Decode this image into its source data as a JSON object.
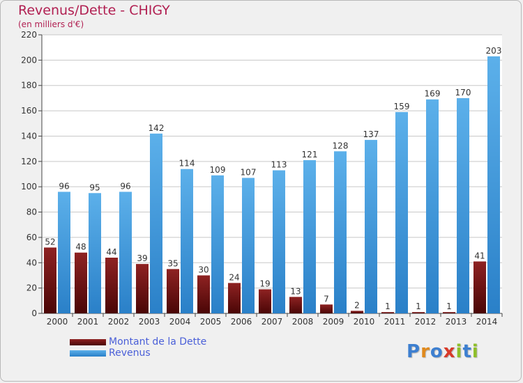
{
  "title": "Revenus/Dette - CHIGY",
  "subtitle": "(en milliers d'€)",
  "logo": "Proxiti",
  "colors": {
    "dette": "#7a1414",
    "revenus": "#3d9ae0",
    "title": "#b12052",
    "legend_text": "#4a5fd8"
  },
  "legend": [
    {
      "label": "Montant de la Dette",
      "color": "#7a1414"
    },
    {
      "label": "Revenus",
      "color": "#3d9ae0"
    }
  ],
  "chart_data": {
    "type": "bar",
    "title": "Revenus/Dette - CHIGY",
    "subtitle": "(en milliers d'€)",
    "categories": [
      "2000",
      "2001",
      "2002",
      "2003",
      "2004",
      "2005",
      "2006",
      "2007",
      "2008",
      "2009",
      "2010",
      "2011",
      "2012",
      "2013",
      "2014"
    ],
    "series": [
      {
        "name": "Montant de la Dette",
        "values": [
          52,
          48,
          44,
          39,
          35,
          30,
          24,
          19,
          13,
          7,
          2,
          1,
          1,
          1,
          41
        ]
      },
      {
        "name": "Revenus",
        "values": [
          96,
          95,
          96,
          142,
          114,
          109,
          107,
          113,
          121,
          128,
          137,
          159,
          169,
          170,
          203
        ]
      }
    ],
    "ylim": [
      0,
      220
    ],
    "yticks": [
      0,
      20,
      40,
      60,
      80,
      100,
      120,
      140,
      160,
      180,
      200,
      220
    ],
    "grid": true,
    "legend_position": "bottom-left"
  }
}
